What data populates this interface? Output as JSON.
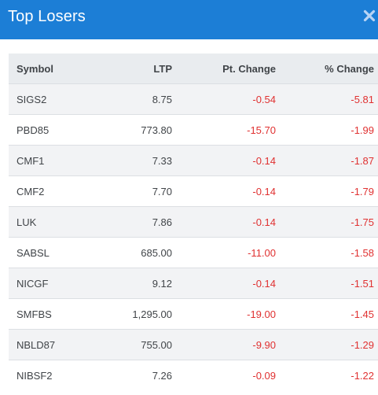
{
  "header": {
    "title": "Top Losers",
    "close_icon": "close-icon"
  },
  "columns": {
    "symbol": "Symbol",
    "ltp": "LTP",
    "pt_change": "Pt. Change",
    "pct_change": "% Change"
  },
  "colors": {
    "header_bg": "#1c7ed6",
    "negative": "#e03131",
    "head_row_bg": "#e9ecef"
  },
  "rows": [
    {
      "symbol": "SIGS2",
      "ltp": "8.75",
      "pt_change": "-0.54",
      "pct_change": "-5.81"
    },
    {
      "symbol": "PBD85",
      "ltp": "773.80",
      "pt_change": "-15.70",
      "pct_change": "-1.99"
    },
    {
      "symbol": "CMF1",
      "ltp": "7.33",
      "pt_change": "-0.14",
      "pct_change": "-1.87"
    },
    {
      "symbol": "CMF2",
      "ltp": "7.70",
      "pt_change": "-0.14",
      "pct_change": "-1.79"
    },
    {
      "symbol": "LUK",
      "ltp": "7.86",
      "pt_change": "-0.14",
      "pct_change": "-1.75"
    },
    {
      "symbol": "SABSL",
      "ltp": "685.00",
      "pt_change": "-11.00",
      "pct_change": "-1.58"
    },
    {
      "symbol": "NICGF",
      "ltp": "9.12",
      "pt_change": "-0.14",
      "pct_change": "-1.51"
    },
    {
      "symbol": "SMFBS",
      "ltp": "1,295.00",
      "pt_change": "-19.00",
      "pct_change": "-1.45"
    },
    {
      "symbol": "NBLD87",
      "ltp": "755.00",
      "pt_change": "-9.90",
      "pct_change": "-1.29"
    },
    {
      "symbol": "NIBSF2",
      "ltp": "7.26",
      "pt_change": "-0.09",
      "pct_change": "-1.22"
    }
  ]
}
